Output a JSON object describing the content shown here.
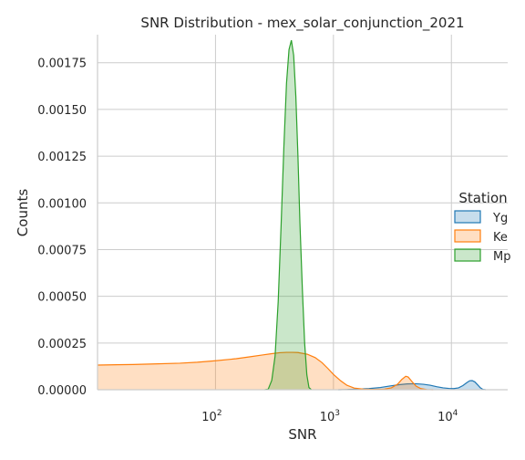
{
  "chart_data": {
    "type": "area",
    "title": "SNR Distribution - mex_solar_conjunction_2021",
    "xlabel": "SNR",
    "ylabel": "Counts",
    "x_scale": "log",
    "xlim": [
      10,
      30000
    ],
    "ylim": [
      0,
      0.0019
    ],
    "grid": true,
    "x_ticks": [
      {
        "value": 100,
        "base": "10",
        "exp": "2"
      },
      {
        "value": 1000,
        "base": "10",
        "exp": "3"
      },
      {
        "value": 10000,
        "base": "10",
        "exp": "4"
      }
    ],
    "y_ticks": [
      {
        "value": 0,
        "label": "0.00000"
      },
      {
        "value": 0.00025,
        "label": "0.00025"
      },
      {
        "value": 0.0005,
        "label": "0.00050"
      },
      {
        "value": 0.00075,
        "label": "0.00075"
      },
      {
        "value": 0.001,
        "label": "0.00100"
      },
      {
        "value": 0.00125,
        "label": "0.00125"
      },
      {
        "value": 0.0015,
        "label": "0.00150"
      },
      {
        "value": 0.00175,
        "label": "0.00175"
      }
    ],
    "legend": {
      "title": "Station",
      "placement": "right"
    },
    "series": [
      {
        "name": "Yg",
        "color": "#1f77b4",
        "points": [
          [
            1100,
            0
          ],
          [
            1300,
            1e-06
          ],
          [
            1600,
            3e-06
          ],
          [
            2000,
            6e-06
          ],
          [
            2500,
            1.2e-05
          ],
          [
            3000,
            2e-05
          ],
          [
            3600,
            2.7e-05
          ],
          [
            4200,
            3.1e-05
          ],
          [
            5000,
            3.2e-05
          ],
          [
            5800,
            2.9e-05
          ],
          [
            6600,
            2.4e-05
          ],
          [
            7500,
            1.6e-05
          ],
          [
            8500,
            1e-05
          ],
          [
            9500,
            7e-06
          ],
          [
            10500,
            6e-06
          ],
          [
            11500,
            1e-05
          ],
          [
            12500,
            2.2e-05
          ],
          [
            13500,
            3.8e-05
          ],
          [
            14300,
            4.8e-05
          ],
          [
            15000,
            4.9e-05
          ],
          [
            15800,
            4.2e-05
          ],
          [
            16700,
            2.6e-05
          ],
          [
            17600,
            1e-05
          ],
          [
            18500,
            2e-06
          ],
          [
            19500,
            0
          ]
        ]
      },
      {
        "name": "Ke",
        "color": "#ff7f0e",
        "points": [
          [
            10,
            0.000132
          ],
          [
            20,
            0.000135
          ],
          [
            30,
            0.000138
          ],
          [
            50,
            0.000142
          ],
          [
            70,
            0.000147
          ],
          [
            100,
            0.000155
          ],
          [
            150,
            0.000166
          ],
          [
            200,
            0.000177
          ],
          [
            250,
            0.000186
          ],
          [
            300,
            0.000193
          ],
          [
            350,
            0.000198
          ],
          [
            400,
            0.0002
          ],
          [
            450,
            0.0002
          ],
          [
            500,
            0.000199
          ],
          [
            600,
            0.00019
          ],
          [
            700,
            0.000172
          ],
          [
            800,
            0.000145
          ],
          [
            900,
            0.000113
          ],
          [
            1000,
            8.2e-05
          ],
          [
            1150,
            4.8e-05
          ],
          [
            1300,
            2.4e-05
          ],
          [
            1500,
            9e-06
          ],
          [
            1800,
            3e-06
          ],
          [
            2200,
            2e-06
          ],
          [
            2700,
            3e-06
          ],
          [
            3100,
            1e-05
          ],
          [
            3500,
            3e-05
          ],
          [
            3800,
            5.5e-05
          ],
          [
            4100,
            7.2e-05
          ],
          [
            4300,
            6.8e-05
          ],
          [
            4600,
            4.6e-05
          ],
          [
            5000,
            2e-05
          ],
          [
            5500,
            6e-06
          ],
          [
            6200,
            1e-06
          ],
          [
            7000,
            0
          ]
        ]
      },
      {
        "name": "Mp",
        "color": "#2ca02c",
        "points": [
          [
            262,
            0
          ],
          [
            280,
            3e-06
          ],
          [
            300,
            5e-05
          ],
          [
            320,
            0.00018
          ],
          [
            340,
            0.00047
          ],
          [
            360,
            0.00088
          ],
          [
            380,
            0.0013
          ],
          [
            400,
            0.00164
          ],
          [
            420,
            0.00182
          ],
          [
            440,
            0.00187
          ],
          [
            460,
            0.00179
          ],
          [
            480,
            0.00157
          ],
          [
            500,
            0.00125
          ],
          [
            520,
            0.00089
          ],
          [
            545,
            0.00054
          ],
          [
            570,
            0.00025
          ],
          [
            595,
            8e-05
          ],
          [
            620,
            1.2e-05
          ],
          [
            650,
            0
          ]
        ]
      }
    ]
  }
}
